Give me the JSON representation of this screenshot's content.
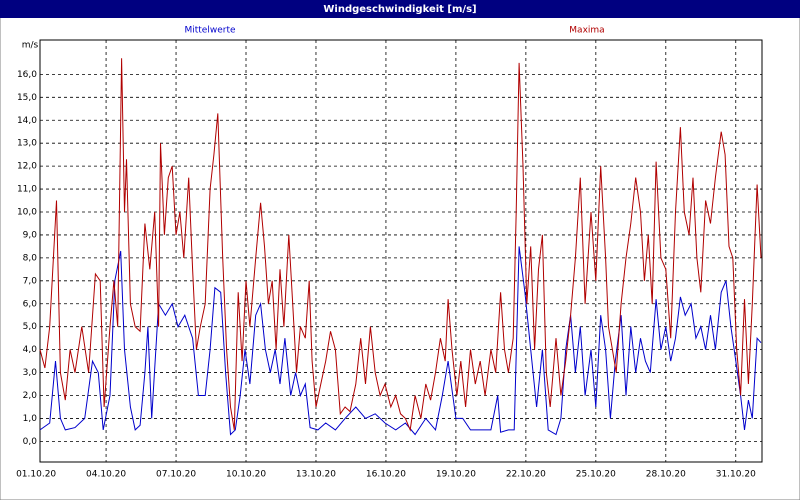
{
  "chart_data": {
    "type": "line",
    "title": "Windgeschwindigkeit [m/s]",
    "y_label": "m/s",
    "xlim": [
      4,
      747
    ],
    "ylim": [
      -0.9,
      17.5
    ],
    "grid": true,
    "xticks": [
      {
        "value": 0,
        "label": "01.10.20"
      },
      {
        "value": 72,
        "label": "04.10.20"
      },
      {
        "value": 144,
        "label": "07.10.20"
      },
      {
        "value": 216,
        "label": "10.10.20"
      },
      {
        "value": 288,
        "label": "13.10.20"
      },
      {
        "value": 360,
        "label": "16.10.20"
      },
      {
        "value": 432,
        "label": "19.10.20"
      },
      {
        "value": 504,
        "label": "22.10.20"
      },
      {
        "value": 576,
        "label": "25.10.20"
      },
      {
        "value": 648,
        "label": "28.10.20"
      },
      {
        "value": 720,
        "label": "31.10.20"
      }
    ],
    "yticks": [
      {
        "value": 0,
        "label": "0,0"
      },
      {
        "value": 1,
        "label": "1,0"
      },
      {
        "value": 2,
        "label": "2,0"
      },
      {
        "value": 3,
        "label": "3,0"
      },
      {
        "value": 4,
        "label": "4,0"
      },
      {
        "value": 5,
        "label": "5,0"
      },
      {
        "value": 6,
        "label": "6,0"
      },
      {
        "value": 7,
        "label": "7,0"
      },
      {
        "value": 8,
        "label": "8,0"
      },
      {
        "value": 9,
        "label": "9,0"
      },
      {
        "value": 10,
        "label": "10,0"
      },
      {
        "value": 11,
        "label": "11,0"
      },
      {
        "value": 12,
        "label": "12,0"
      },
      {
        "value": 13,
        "label": "13,0"
      },
      {
        "value": 14,
        "label": "14,0"
      },
      {
        "value": 15,
        "label": "15,0"
      },
      {
        "value": 16,
        "label": "16,0"
      }
    ],
    "series": [
      {
        "name": "Mittelwerte",
        "color": "#0000cc",
        "x": [
          4,
          14,
          20,
          25,
          30,
          40,
          50,
          58,
          64,
          69,
          76,
          81,
          87,
          91,
          97,
          102,
          107,
          112,
          115,
          119,
          126,
          133,
          140,
          146,
          153,
          161,
          167,
          174,
          179,
          184,
          190,
          195,
          200,
          205,
          210,
          215,
          220,
          226,
          231,
          236,
          241,
          246,
          251,
          256,
          262,
          267,
          272,
          277,
          282,
          290,
          298,
          308,
          318,
          329,
          339,
          349,
          359,
          370,
          380,
          390,
          401,
          411,
          418,
          424,
          432,
          439,
          447,
          457,
          468,
          475,
          478,
          486,
          492,
          497,
          503,
          509,
          515,
          521,
          527,
          535,
          540,
          545,
          550,
          555,
          560,
          565,
          571,
          576,
          581,
          586,
          591,
          596,
          602,
          607,
          612,
          617,
          622,
          627,
          632,
          638,
          643,
          648,
          653,
          658,
          663,
          668,
          674,
          679,
          684,
          689,
          694,
          699,
          705,
          710,
          715,
          720,
          725,
          729,
          733,
          737,
          742,
          746
        ],
        "values": [
          0.5,
          0.8,
          3.5,
          1.0,
          0.5,
          0.6,
          1.0,
          3.5,
          3.0,
          0.5,
          2.0,
          7.0,
          8.3,
          4.0,
          1.5,
          0.5,
          0.7,
          3.0,
          5.0,
          1.0,
          6.0,
          5.5,
          6.0,
          5.0,
          5.5,
          4.5,
          2.0,
          2.0,
          4.0,
          6.7,
          6.5,
          3.0,
          0.3,
          0.5,
          2.0,
          4.0,
          2.5,
          5.5,
          6.0,
          4.0,
          3.0,
          4.0,
          2.5,
          4.5,
          2.0,
          3.0,
          2.0,
          2.5,
          0.6,
          0.5,
          0.8,
          0.5,
          1.0,
          1.5,
          1.0,
          1.2,
          0.8,
          0.5,
          0.8,
          0.3,
          1.0,
          0.5,
          2.0,
          3.5,
          1.0,
          1.0,
          0.5,
          0.5,
          0.5,
          2.0,
          0.4,
          0.5,
          0.5,
          8.5,
          6.5,
          4.0,
          1.5,
          4.0,
          0.5,
          0.3,
          1.0,
          4.0,
          5.5,
          3.0,
          5.0,
          2.0,
          4.0,
          1.5,
          5.5,
          4.0,
          1.0,
          3.5,
          5.5,
          2.0,
          5.0,
          3.0,
          4.5,
          3.5,
          3.0,
          6.2,
          4.0,
          5.0,
          3.5,
          4.5,
          6.3,
          5.5,
          6.0,
          4.5,
          5.0,
          4.0,
          5.5,
          4.0,
          6.5,
          7.0,
          5.0,
          3.5,
          2.0,
          0.5,
          1.8,
          1.0,
          4.5,
          4.3
        ]
      },
      {
        "name": "Maxima",
        "color": "#b00000",
        "x": [
          4,
          9,
          14,
          21,
          25,
          30,
          35,
          40,
          47,
          54,
          61,
          66,
          70,
          76,
          80,
          84,
          88,
          91,
          93,
          97,
          102,
          107,
          112,
          117,
          122,
          126,
          128,
          132,
          136,
          140,
          144,
          148,
          152,
          157,
          161,
          165,
          169,
          174,
          179,
          183,
          187,
          192,
          196,
          200,
          204,
          208,
          212,
          216,
          220,
          226,
          231,
          235,
          239,
          243,
          247,
          251,
          255,
          260,
          264,
          268,
          272,
          277,
          281,
          284,
          288,
          293,
          298,
          303,
          308,
          313,
          318,
          323,
          329,
          334,
          339,
          344,
          349,
          354,
          359,
          365,
          370,
          375,
          380,
          385,
          390,
          396,
          401,
          406,
          411,
          416,
          421,
          424,
          428,
          433,
          437,
          442,
          447,
          452,
          457,
          462,
          468,
          473,
          478,
          482,
          486,
          491,
          494,
          497,
          501,
          505,
          509,
          513,
          517,
          521,
          525,
          529,
          535,
          540,
          545,
          550,
          555,
          560,
          565,
          571,
          576,
          581,
          586,
          589,
          593,
          597,
          602,
          607,
          612,
          617,
          622,
          626,
          630,
          634,
          638,
          643,
          648,
          653,
          658,
          663,
          667,
          672,
          676,
          680,
          684,
          689,
          694,
          699,
          705,
          709,
          713,
          717,
          721,
          725,
          729,
          733,
          737,
          742,
          746
        ],
        "values": [
          4.0,
          3.2,
          5.0,
          10.5,
          3.0,
          1.8,
          4.0,
          3.0,
          5.0,
          3.0,
          7.3,
          7.0,
          1.5,
          5.0,
          7.0,
          5.0,
          16.7,
          10.0,
          12.3,
          6.0,
          5.0,
          4.8,
          9.5,
          7.5,
          10.0,
          5.0,
          13.0,
          9.0,
          11.5,
          12.0,
          9.0,
          10.0,
          8.0,
          11.5,
          7.5,
          4.0,
          5.0,
          6.0,
          11.0,
          12.5,
          14.3,
          8.0,
          4.0,
          1.5,
          0.5,
          6.5,
          3.5,
          7.0,
          5.0,
          8.0,
          10.4,
          8.5,
          6.0,
          7.0,
          4.0,
          7.5,
          5.0,
          9.0,
          6.0,
          3.0,
          5.0,
          4.5,
          7.0,
          3.5,
          1.5,
          2.5,
          3.5,
          4.8,
          4.0,
          1.2,
          1.5,
          1.3,
          2.5,
          4.5,
          2.5,
          5.0,
          3.0,
          2.0,
          2.5,
          1.5,
          2.0,
          1.2,
          1.0,
          0.5,
          2.0,
          1.0,
          2.5,
          1.8,
          3.0,
          4.5,
          3.5,
          6.2,
          4.0,
          2.0,
          3.5,
          1.5,
          4.0,
          2.5,
          3.5,
          2.0,
          4.0,
          3.0,
          6.5,
          4.0,
          3.0,
          4.5,
          10.0,
          16.5,
          12.0,
          6.0,
          8.5,
          4.0,
          7.5,
          9.0,
          3.0,
          1.5,
          4.5,
          2.0,
          3.5,
          5.5,
          8.0,
          11.5,
          6.0,
          10.0,
          7.0,
          12.0,
          8.0,
          5.0,
          4.0,
          3.0,
          6.0,
          8.0,
          9.5,
          11.5,
          10.0,
          7.0,
          9.0,
          6.0,
          12.2,
          8.0,
          7.5,
          4.5,
          10.0,
          13.7,
          10.0,
          9.0,
          11.5,
          8.0,
          6.5,
          10.5,
          9.5,
          11.5,
          13.5,
          12.5,
          8.5,
          8.0,
          4.0,
          2.0,
          6.2,
          2.5,
          6.0,
          11.2,
          8.0
        ]
      }
    ]
  }
}
